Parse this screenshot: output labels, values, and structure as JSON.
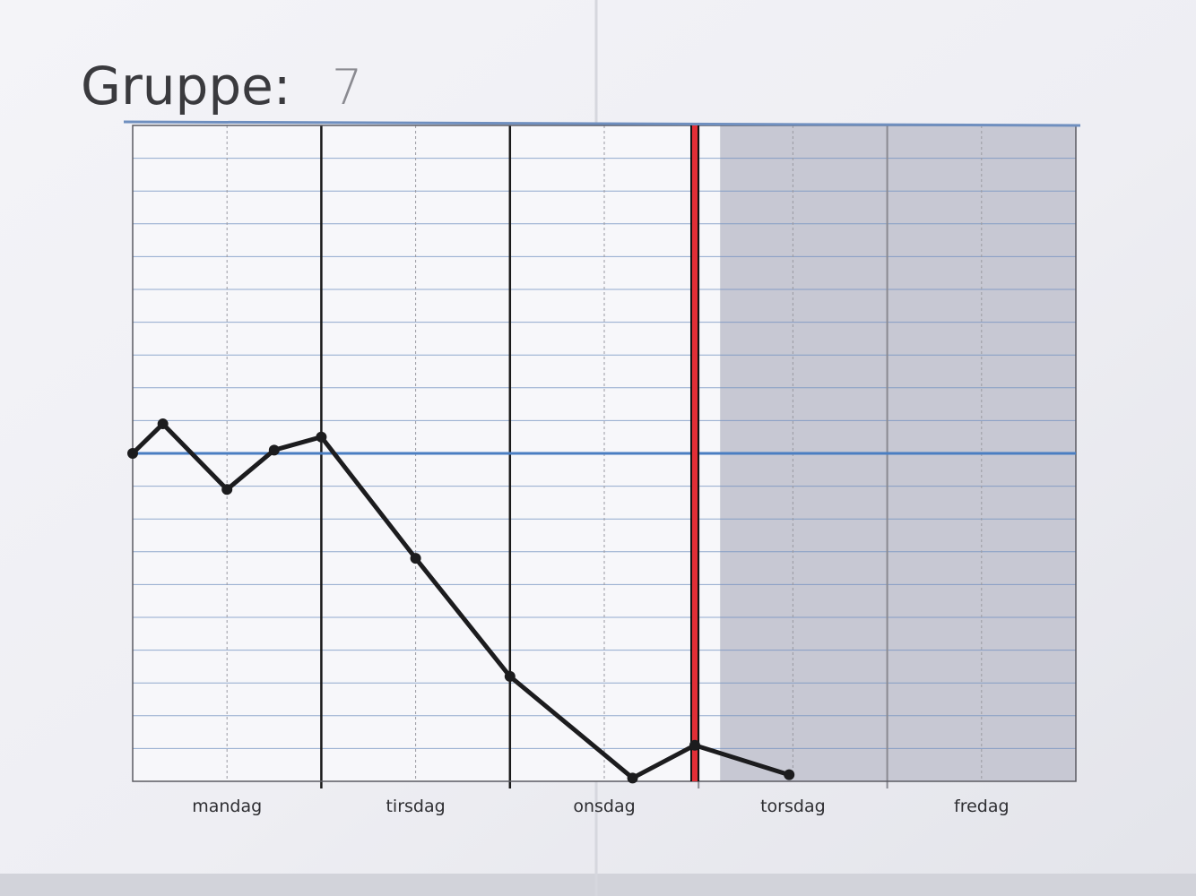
{
  "sheet": {
    "title": "Gruppe:",
    "group_number": "7"
  },
  "chart_data": {
    "type": "line",
    "title": "",
    "categories": [
      "mandag",
      "tirsdag",
      "onsdag",
      "torsdag",
      "fredag"
    ],
    "x_unit": "day (0 = start of mandag, 5 = end of fredag)",
    "xlim": [
      0,
      5
    ],
    "y_rows": 20,
    "ylim": [
      0,
      20
    ],
    "series": [
      {
        "points": [
          {
            "x": 0.0,
            "y": 10.0
          },
          {
            "x": 0.16,
            "y": 10.9
          },
          {
            "x": 0.5,
            "y": 8.9
          },
          {
            "x": 0.75,
            "y": 10.1
          },
          {
            "x": 1.0,
            "y": 10.5
          },
          {
            "x": 1.5,
            "y": 6.8
          },
          {
            "x": 2.0,
            "y": 3.2
          },
          {
            "x": 2.65,
            "y": 0.1
          },
          {
            "x": 2.98,
            "y": 1.1
          },
          {
            "x": 3.48,
            "y": 0.2
          }
        ]
      }
    ],
    "reference_lines": [
      {
        "axis": "y",
        "value": 10,
        "color": "#4a7ec2"
      },
      {
        "axis": "x",
        "value": 2.98,
        "color": "#e22e36"
      }
    ],
    "shaded_region": {
      "x_from": 3.0,
      "x_to": 5.0,
      "color": "#c7c8d3"
    },
    "colors": {
      "grid": "#6f8fbf",
      "day_divider": "#1a1a1a",
      "line": "#1c1c1e",
      "shade": "#c7c8d3",
      "paper": "#f1f1f5"
    }
  }
}
